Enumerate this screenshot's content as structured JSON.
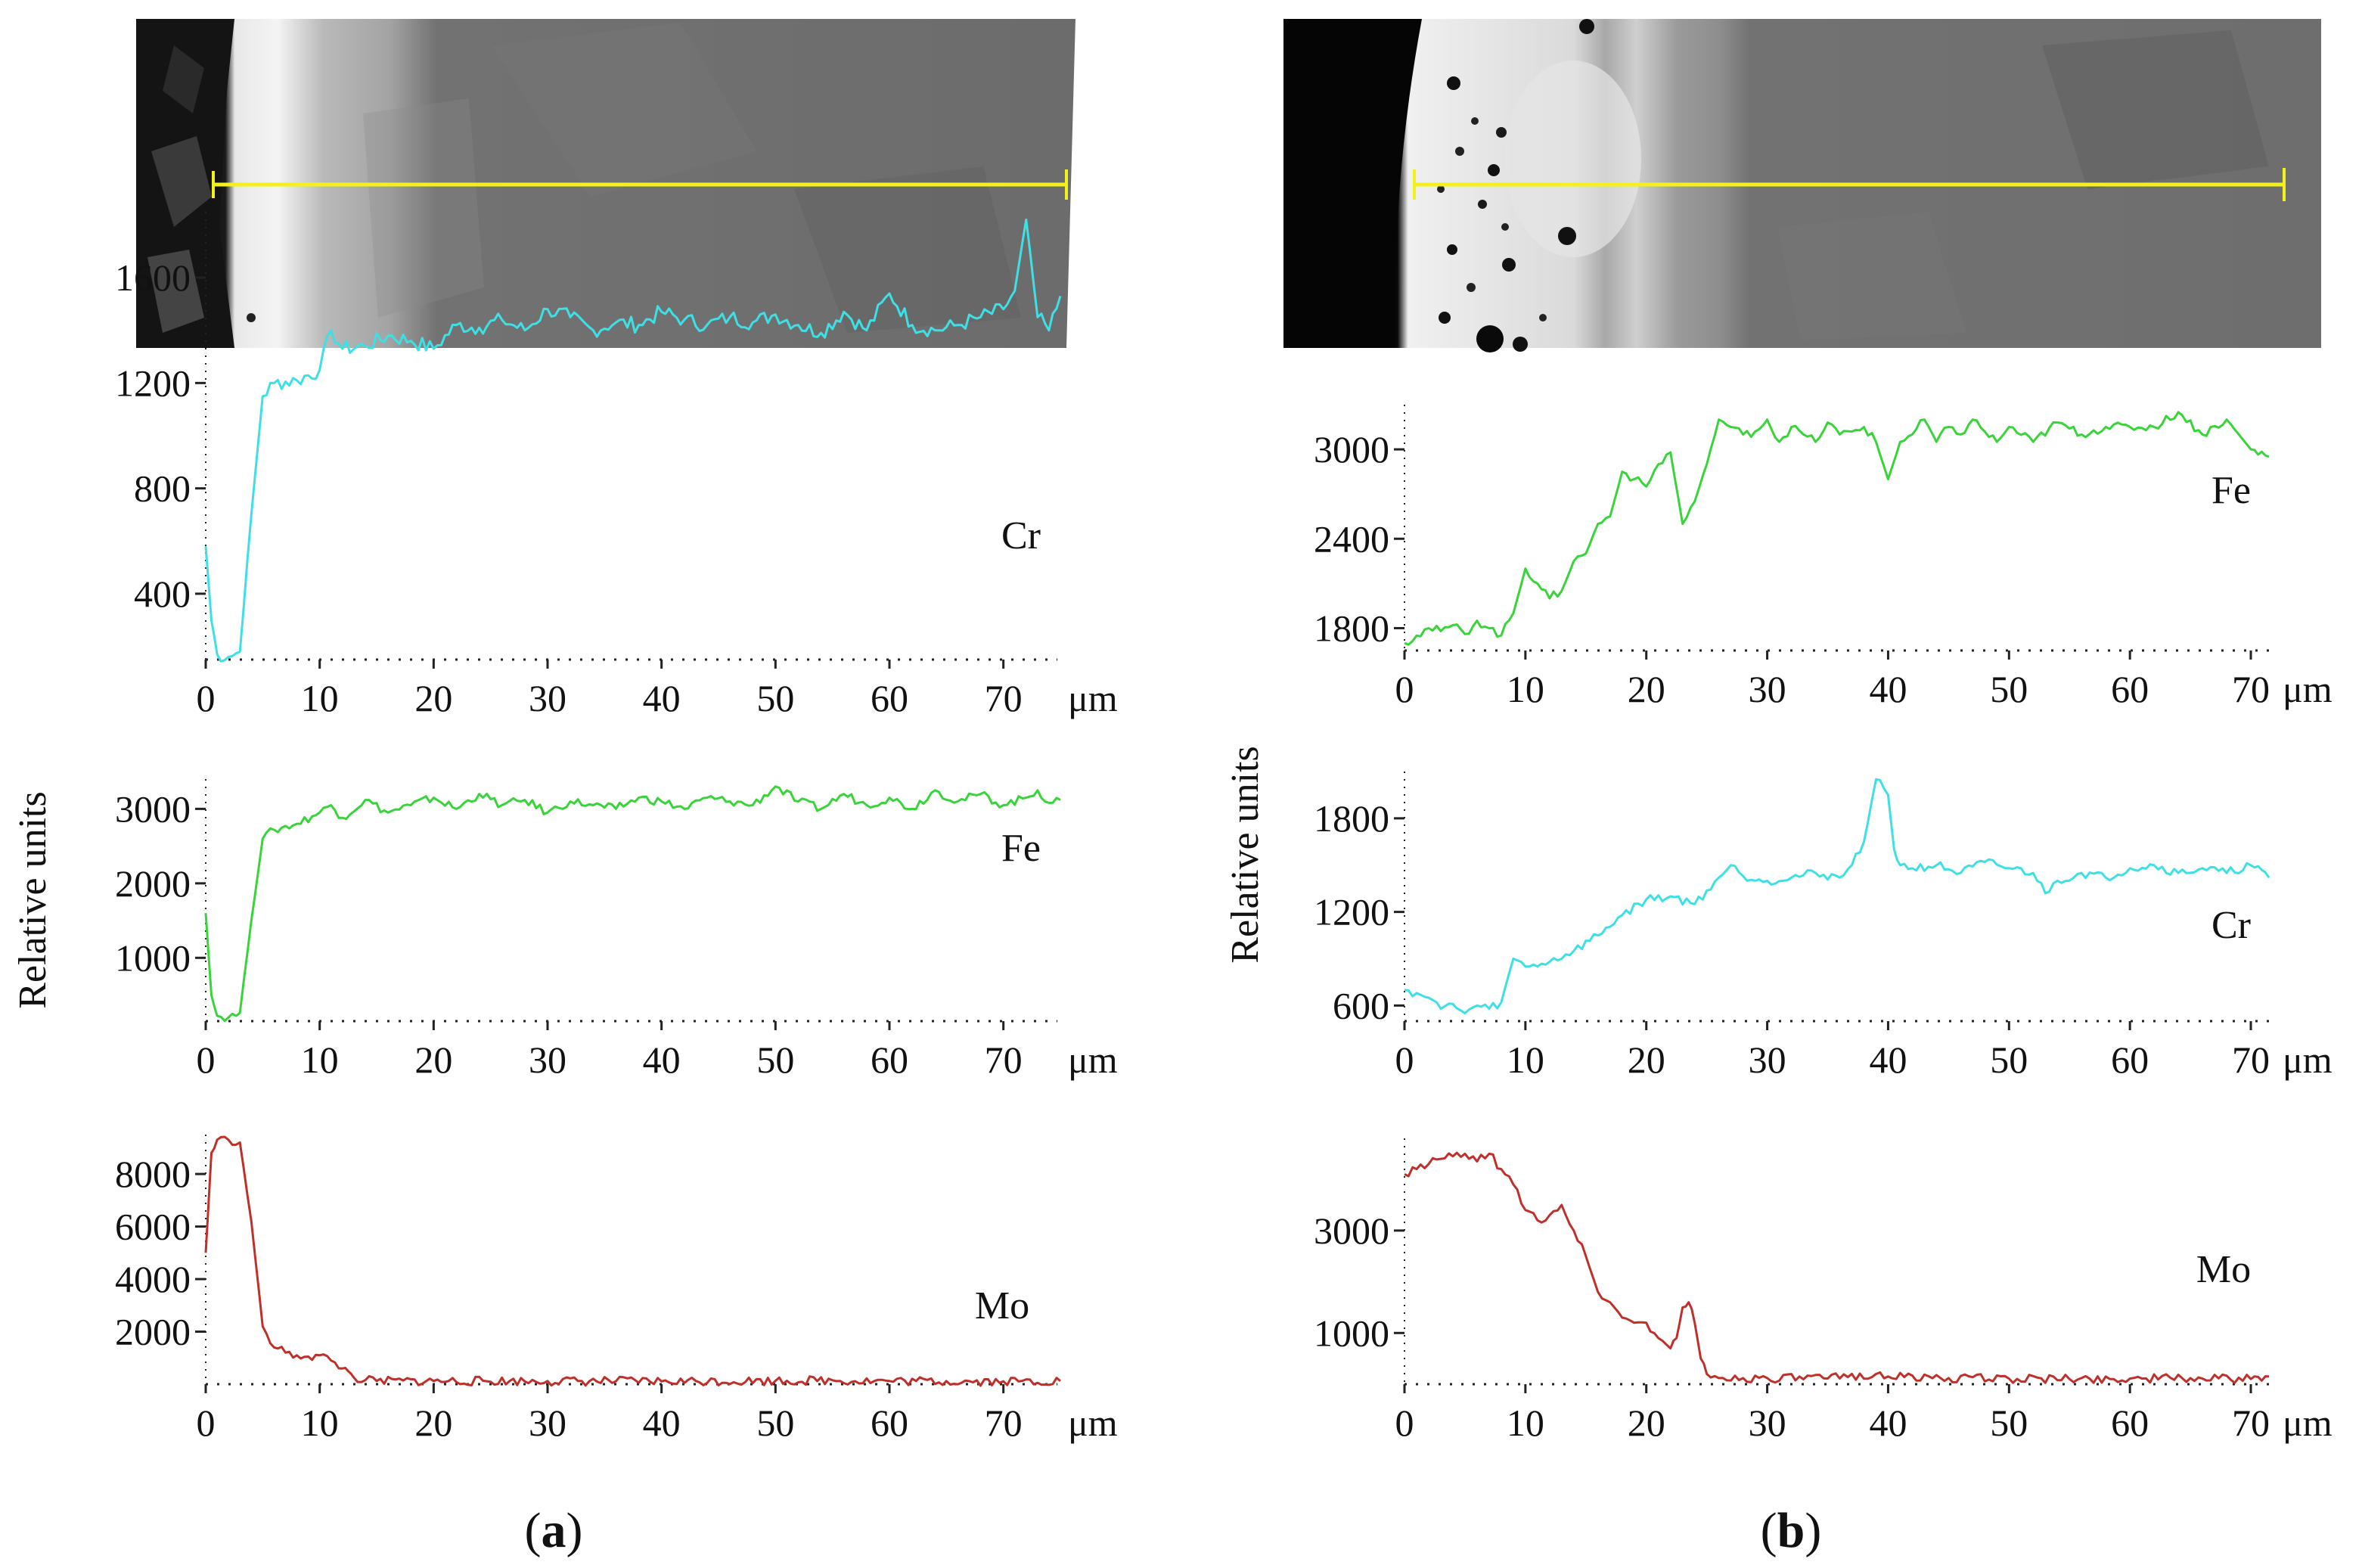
{
  "figure": {
    "panels": [
      {
        "id": "a",
        "label_open": "(",
        "label_letter": "a",
        "label_close": ")",
        "ylabel": "Relative units"
      },
      {
        "id": "b",
        "label_open": "(",
        "label_letter": "b",
        "label_close": ")",
        "ylabel": "Relative units"
      }
    ],
    "x_unit": "μm",
    "scan_line_color": "#f2f21a"
  },
  "colors": {
    "Cr": "#3ee0e6",
    "Fe": "#39d43a",
    "Mo": "#c0302a"
  },
  "chart_data": [
    {
      "panel": "a",
      "element": "Cr",
      "type": "line",
      "color": "#3ee0e6",
      "xlabel": "μm",
      "xlim": [
        0,
        75
      ],
      "ylim": [
        150,
        1850
      ],
      "xticks": [
        0,
        10,
        20,
        30,
        40,
        50,
        60,
        70
      ],
      "yticks": [
        400,
        800,
        1200,
        1600
      ],
      "x": [
        0,
        0.5,
        1,
        2,
        3,
        4,
        5,
        6,
        8,
        10,
        11,
        12,
        14,
        16,
        18,
        20,
        22,
        24,
        26,
        28,
        30,
        32,
        34,
        36,
        38,
        40,
        42,
        44,
        46,
        48,
        50,
        52,
        54,
        56,
        58,
        60,
        62,
        64,
        66,
        68,
        70,
        71,
        72,
        73,
        74,
        75
      ],
      "y": [
        580,
        300,
        170,
        160,
        180,
        700,
        1150,
        1200,
        1210,
        1250,
        1400,
        1330,
        1340,
        1380,
        1360,
        1330,
        1420,
        1410,
        1440,
        1400,
        1480,
        1450,
        1400,
        1430,
        1420,
        1470,
        1440,
        1420,
        1450,
        1430,
        1460,
        1420,
        1390,
        1470,
        1400,
        1540,
        1420,
        1400,
        1420,
        1450,
        1480,
        1550,
        1820,
        1450,
        1400,
        1530
      ]
    },
    {
      "panel": "a",
      "element": "Fe",
      "type": "line",
      "color": "#39d43a",
      "xlabel": "μm",
      "xlim": [
        0,
        75
      ],
      "ylim": [
        150,
        3400
      ],
      "xticks": [
        0,
        10,
        20,
        30,
        40,
        50,
        60,
        70
      ],
      "yticks": [
        1000,
        2000,
        3000
      ],
      "x": [
        0,
        0.5,
        1,
        2,
        3,
        4,
        5,
        6,
        8,
        10,
        11,
        12,
        14,
        16,
        18,
        20,
        22,
        24,
        26,
        28,
        30,
        32,
        34,
        36,
        38,
        40,
        42,
        44,
        46,
        48,
        50,
        52,
        54,
        56,
        58,
        60,
        62,
        64,
        66,
        68,
        70,
        72,
        73,
        74,
        75
      ],
      "y": [
        1600,
        500,
        220,
        200,
        260,
        1500,
        2600,
        2720,
        2800,
        2950,
        3050,
        2880,
        3120,
        2950,
        3050,
        3150,
        3000,
        3200,
        3050,
        3120,
        2950,
        3100,
        3050,
        3000,
        3150,
        3100,
        3000,
        3150,
        3100,
        3050,
        3300,
        3100,
        3000,
        3200,
        3050,
        3150,
        3000,
        3250,
        3100,
        3200,
        3050,
        3150,
        3250,
        3080,
        3120
      ]
    },
    {
      "panel": "a",
      "element": "Mo",
      "type": "line",
      "color": "#c0302a",
      "xlabel": "μm",
      "xlim": [
        0,
        75
      ],
      "ylim": [
        0,
        9500
      ],
      "xticks": [
        0,
        10,
        20,
        30,
        40,
        50,
        60,
        70
      ],
      "yticks": [
        2000,
        4000,
        6000,
        8000
      ],
      "x": [
        0,
        0.5,
        1,
        2,
        3,
        4,
        5,
        6,
        7,
        8,
        9,
        10,
        11,
        12,
        12.5,
        13,
        14,
        15,
        20,
        30,
        40,
        50,
        55,
        60,
        70,
        75
      ],
      "y": [
        5000,
        8800,
        9300,
        9300,
        9200,
        6200,
        2200,
        1400,
        1200,
        1100,
        1050,
        1100,
        900,
        600,
        500,
        250,
        150,
        120,
        120,
        120,
        110,
        130,
        150,
        120,
        110,
        120
      ]
    },
    {
      "panel": "b",
      "element": "Fe",
      "type": "line",
      "color": "#39d43a",
      "xlabel": "μm",
      "xlim": [
        0,
        72
      ],
      "ylim": [
        1650,
        3300
      ],
      "xticks": [
        0,
        10,
        20,
        30,
        40,
        50,
        60,
        70
      ],
      "yticks": [
        1800,
        2400,
        3000
      ],
      "x": [
        0,
        1,
        2,
        3,
        4,
        5,
        6,
        7,
        8,
        9,
        10,
        11,
        12,
        13,
        14,
        15,
        16,
        17,
        18,
        19,
        20,
        21,
        22,
        23,
        24,
        25,
        26,
        27,
        28,
        29,
        30,
        31,
        32,
        33,
        34,
        35,
        36,
        37,
        38,
        39,
        40,
        41,
        42,
        43,
        44,
        45,
        46,
        47,
        48,
        49,
        50,
        52,
        54,
        56,
        58,
        60,
        62,
        64,
        66,
        68,
        70,
        71.5
      ],
      "y": [
        1700,
        1750,
        1800,
        1780,
        1820,
        1760,
        1850,
        1800,
        1750,
        1900,
        2200,
        2100,
        2000,
        2050,
        2250,
        2300,
        2500,
        2550,
        2850,
        2800,
        2750,
        2900,
        2980,
        2500,
        2650,
        2900,
        3200,
        3150,
        3100,
        3120,
        3200,
        3050,
        3150,
        3100,
        3050,
        3180,
        3100,
        3120,
        3150,
        3050,
        2800,
        3050,
        3100,
        3200,
        3050,
        3150,
        3100,
        3200,
        3120,
        3050,
        3150,
        3050,
        3180,
        3100,
        3150,
        3150,
        3150,
        3250,
        3100,
        3200,
        3000,
        2950
      ]
    },
    {
      "panel": "b",
      "element": "Cr",
      "type": "line",
      "color": "#3ee0e6",
      "xlabel": "μm",
      "xlim": [
        0,
        72
      ],
      "ylim": [
        500,
        2100
      ],
      "xticks": [
        0,
        10,
        20,
        30,
        40,
        50,
        60,
        70
      ],
      "yticks": [
        600,
        1200,
        1800
      ],
      "x": [
        0,
        1,
        2,
        3,
        4,
        5,
        6,
        7,
        8,
        9,
        10,
        12,
        14,
        16,
        18,
        20,
        22,
        24,
        26,
        27,
        28,
        30,
        32,
        34,
        36,
        37,
        38,
        39,
        40,
        40.5,
        41,
        42,
        44,
        46,
        48,
        50,
        52,
        53,
        54,
        56,
        58,
        60,
        62,
        64,
        66,
        68,
        70,
        71.5
      ],
      "y": [
        700,
        680,
        650,
        580,
        610,
        550,
        600,
        580,
        620,
        900,
        850,
        880,
        950,
        1050,
        1180,
        1280,
        1300,
        1250,
        1420,
        1500,
        1430,
        1400,
        1420,
        1450,
        1420,
        1500,
        1650,
        2050,
        1950,
        1600,
        1500,
        1480,
        1500,
        1450,
        1520,
        1480,
        1450,
        1320,
        1400,
        1450,
        1420,
        1480,
        1500,
        1450,
        1480,
        1450,
        1500,
        1420
      ]
    },
    {
      "panel": "b",
      "element": "Mo",
      "type": "line",
      "color": "#c0302a",
      "xlabel": "μm",
      "xlim": [
        0,
        72
      ],
      "ylim": [
        0,
        4800
      ],
      "xticks": [
        0,
        10,
        20,
        30,
        40,
        50,
        60,
        70
      ],
      "yticks": [
        1000,
        3000
      ],
      "x": [
        0,
        1,
        2,
        3,
        4,
        5,
        6,
        7,
        8,
        9,
        10,
        11,
        12,
        13,
        14,
        15,
        16,
        17,
        18,
        19,
        20,
        21,
        22,
        22.5,
        23,
        23.5,
        24,
        24.5,
        25,
        26,
        28,
        30,
        35,
        39,
        40,
        45,
        50,
        55,
        60,
        65,
        70,
        71.5
      ],
      "y": [
        4100,
        4200,
        4300,
        4400,
        4450,
        4500,
        4350,
        4500,
        4200,
        3900,
        3400,
        3200,
        3300,
        3500,
        3000,
        2500,
        1800,
        1600,
        1300,
        1200,
        1200,
        900,
        700,
        900,
        1500,
        1600,
        1200,
        500,
        200,
        120,
        120,
        120,
        110,
        200,
        150,
        120,
        110,
        100,
        110,
        120,
        100,
        150
      ]
    }
  ]
}
